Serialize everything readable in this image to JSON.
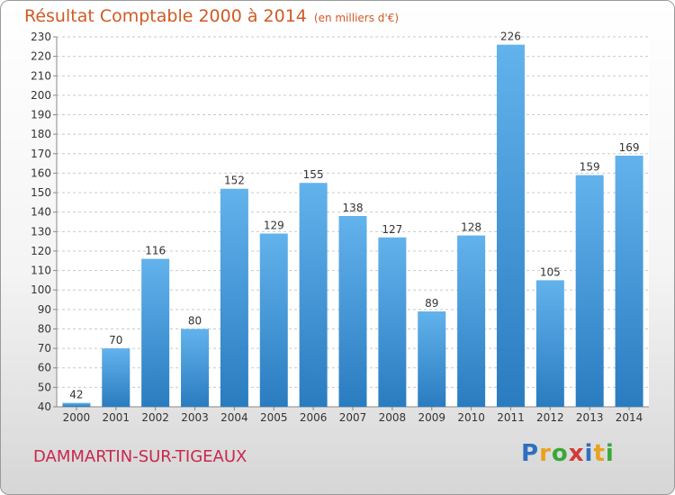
{
  "header": {
    "title": "Résultat Comptable 2000 à 2014",
    "unit": "(en milliers d'€)"
  },
  "footer": {
    "town": "DAMMARTIN-SUR-TIGEAUX",
    "brand_letters": [
      "P",
      "r",
      "o",
      "x",
      "i",
      "t",
      "i"
    ],
    "brand_colors": [
      "#2f6fc0",
      "#e8a21c",
      "#3aa838",
      "#d13a3a",
      "#2f6fc0",
      "#e8a21c",
      "#3aa838"
    ]
  },
  "colors": {
    "bar_light": "#62b2ec",
    "bar_dark": "#2a7cc0",
    "grid": "#c9c9c9",
    "text": "#333333"
  },
  "chart_data": {
    "type": "bar",
    "title": "Résultat Comptable 2000 à 2014",
    "subtitle": "(en milliers d'€)",
    "xlabel": "",
    "ylabel": "",
    "categories": [
      "2000",
      "2001",
      "2002",
      "2003",
      "2004",
      "2005",
      "2006",
      "2007",
      "2008",
      "2009",
      "2010",
      "2011",
      "2012",
      "2013",
      "2014"
    ],
    "values": [
      42,
      70,
      116,
      80,
      152,
      129,
      155,
      138,
      127,
      89,
      128,
      226,
      105,
      159,
      169
    ],
    "ylim": [
      40,
      230
    ],
    "ytick_step": 10,
    "grid": true,
    "legend": "none"
  }
}
